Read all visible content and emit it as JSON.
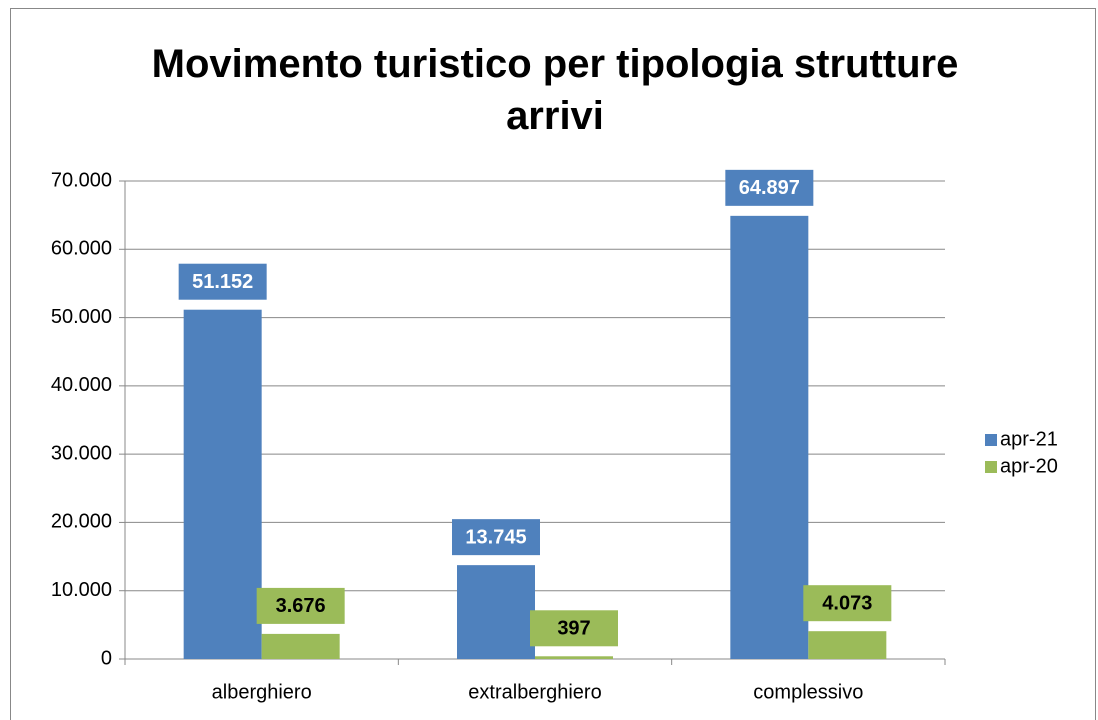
{
  "chart_data": {
    "type": "bar",
    "title": "Movimento turistico per tipologia strutture arrivi",
    "categories": [
      "alberghiero",
      "extralberghiero",
      "complessivo"
    ],
    "series": [
      {
        "name": "apr-21",
        "color": "#4f81bd",
        "values": [
          51152,
          13745,
          64897
        ],
        "value_labels": [
          "51.152",
          "13.745",
          "64.897"
        ],
        "label_color": "#ffffff"
      },
      {
        "name": "apr-20",
        "color": "#9bbb59",
        "values": [
          3676,
          397,
          4073
        ],
        "value_labels": [
          "3.676",
          "397",
          "4.073"
        ],
        "label_color": "#000000"
      }
    ],
    "ylim": [
      0,
      70000
    ],
    "yticks": [
      0,
      {
        "value": 10000,
        "label": "10.000"
      },
      {
        "value": 20000,
        "label": "20.000"
      },
      {
        "value": 30000,
        "label": "30.000"
      },
      {
        "value": 40000,
        "label": "40.000"
      },
      {
        "value": 50000,
        "label": "50.000"
      },
      {
        "value": 60000,
        "label": "60.000"
      },
      {
        "value": 70000,
        "label": "70.000"
      }
    ],
    "grid": true,
    "legend": "right"
  }
}
